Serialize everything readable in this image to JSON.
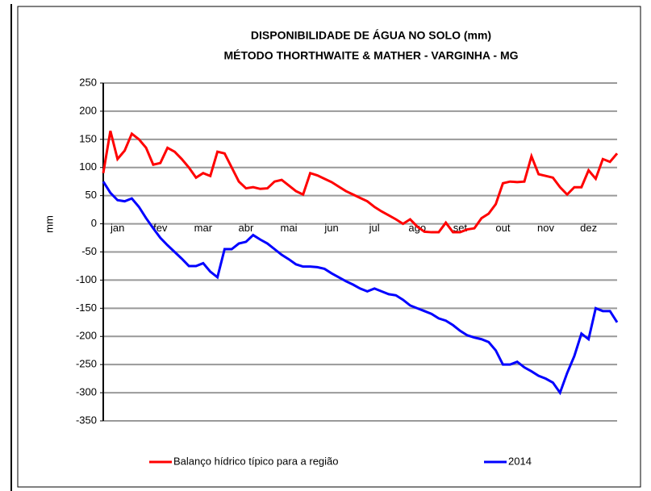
{
  "chart_data": {
    "type": "line",
    "title": "DISPONIBILIDADE DE ÁGUA NO SOLO (mm)",
    "subtitle": "MÉTODO THORTHWAITE & MATHER - VARGINHA - MG",
    "y_label": "mm",
    "categories": [
      null,
      null,
      "jan",
      null,
      null,
      null,
      null,
      null,
      "fev",
      null,
      null,
      null,
      null,
      null,
      "mar",
      null,
      null,
      null,
      null,
      null,
      "abr",
      null,
      null,
      null,
      null,
      null,
      "mai",
      null,
      null,
      null,
      null,
      null,
      "jun",
      null,
      null,
      null,
      null,
      null,
      "jul",
      null,
      null,
      null,
      null,
      null,
      "ago",
      null,
      null,
      null,
      null,
      null,
      "set",
      null,
      null,
      null,
      null,
      null,
      "out",
      null,
      null,
      null,
      null,
      null,
      "nov",
      null,
      null,
      null,
      null,
      null,
      "dez",
      null,
      null,
      null,
      null
    ],
    "series": [
      {
        "name": "Balanço hídrico típico para a região",
        "color": "#ff0000",
        "values": [
          90,
          165,
          115,
          130,
          160,
          150,
          135,
          105,
          108,
          135,
          128,
          115,
          100,
          82,
          90,
          85,
          128,
          125,
          100,
          75,
          63,
          65,
          62,
          63,
          75,
          78,
          68,
          58,
          52,
          90,
          86,
          80,
          74,
          66,
          58,
          52,
          46,
          40,
          30,
          22,
          15,
          8,
          0,
          8,
          -5,
          -14,
          -15,
          -15,
          2,
          -15,
          -15,
          -10,
          -8,
          10,
          18,
          35,
          72,
          75,
          74,
          75,
          120,
          88,
          85,
          82,
          65,
          52,
          65,
          65,
          95,
          80,
          115,
          110,
          125
        ]
      },
      {
        "name": "2014",
        "color": "#0000ff",
        "values": [
          75,
          55,
          42,
          40,
          45,
          30,
          10,
          -8,
          -25,
          -38,
          -50,
          -62,
          -75,
          -75,
          -70,
          -85,
          -95,
          -45,
          -45,
          -35,
          -32,
          -20,
          -28,
          -35,
          -45,
          -55,
          -63,
          -72,
          -76,
          -76,
          -77,
          -80,
          -88,
          -95,
          -102,
          -108,
          -115,
          -120,
          -115,
          -120,
          -125,
          -127,
          -135,
          -145,
          -150,
          -155,
          -160,
          -168,
          -172,
          -180,
          -190,
          -198,
          -202,
          -205,
          -210,
          -225,
          -250,
          -250,
          -245,
          -255,
          -262,
          -270,
          -275,
          -282,
          -300,
          -265,
          -235,
          -195,
          -205,
          -150,
          -155,
          -155,
          -175
        ]
      }
    ],
    "ylim": [
      -350,
      250
    ],
    "yticks": [
      -350,
      -300,
      -250,
      -200,
      -150,
      -100,
      -50,
      0,
      50,
      100,
      150,
      200,
      250
    ],
    "grid": true
  }
}
